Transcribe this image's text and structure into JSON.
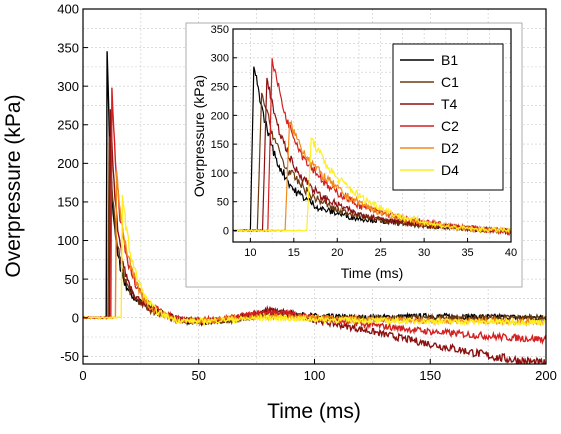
{
  "chart_data": [
    {
      "type": "line",
      "title": "",
      "xlabel": "Time (ms)",
      "ylabel": "Overpressure (kPa)",
      "xlim": [
        0,
        200
      ],
      "ylim": [
        -60,
        400
      ],
      "xticks": [
        0,
        50,
        100,
        150,
        200
      ],
      "yticks": [
        -50,
        0,
        50,
        100,
        150,
        200,
        250,
        300,
        350,
        400
      ],
      "grid": true,
      "series": [
        {
          "name": "B1",
          "color": "#000000",
          "arrival": 10,
          "x": [
            0,
            10,
            10.4,
            11.5,
            13,
            15,
            18,
            22,
            28,
            35,
            45,
            60,
            70,
            80,
            90,
            100,
            120,
            150,
            200
          ],
          "y": [
            0,
            0,
            345,
            220,
            140,
            80,
            45,
            25,
            15,
            5,
            -5,
            -5,
            0,
            8,
            5,
            2,
            0,
            2,
            0
          ]
        },
        {
          "name": "C1",
          "color": "#6b3a10",
          "arrival": 10.8,
          "x": [
            0,
            10.8,
            11.3,
            12.5,
            14,
            17,
            20,
            25,
            30,
            40,
            50,
            65,
            80,
            90,
            100,
            120,
            150,
            200
          ],
          "y": [
            0,
            0,
            235,
            170,
            110,
            60,
            35,
            18,
            8,
            -2,
            -5,
            -3,
            5,
            3,
            0,
            -1,
            0,
            0
          ]
        },
        {
          "name": "T4",
          "color": "#8b1010",
          "arrival": 11.4,
          "x": [
            0,
            11.4,
            11.9,
            13,
            15,
            18,
            22,
            28,
            40,
            55,
            70,
            80,
            90,
            100,
            120,
            140,
            160,
            180,
            200
          ],
          "y": [
            0,
            0,
            270,
            190,
            110,
            60,
            30,
            12,
            -3,
            -5,
            2,
            10,
            5,
            -3,
            -15,
            -28,
            -40,
            -52,
            -60
          ]
        },
        {
          "name": "C2",
          "color": "#d42020",
          "arrival": 12.0,
          "x": [
            0,
            12,
            12.5,
            14,
            16,
            19,
            23,
            28,
            35,
            45,
            60,
            80,
            90,
            100,
            120,
            150,
            180,
            200
          ],
          "y": [
            0,
            0,
            298,
            200,
            130,
            75,
            40,
            20,
            5,
            -4,
            -2,
            8,
            5,
            0,
            -8,
            -18,
            -25,
            -28
          ]
        },
        {
          "name": "D2",
          "color": "#f28a1a",
          "arrival": 14.0,
          "x": [
            0,
            14,
            14.5,
            16,
            18,
            21,
            25,
            30,
            40,
            50,
            60,
            80,
            100,
            130,
            160,
            200
          ],
          "y": [
            0,
            0,
            190,
            140,
            100,
            60,
            30,
            10,
            -3,
            -5,
            -2,
            2,
            0,
            -3,
            -4,
            -5
          ]
        },
        {
          "name": "D4",
          "color": "#ffee20",
          "arrival": 16.5,
          "x": [
            0,
            16.5,
            17,
            18.5,
            20,
            23,
            27,
            32,
            40,
            50,
            60,
            80,
            100,
            130,
            160,
            200
          ],
          "y": [
            0,
            0,
            160,
            120,
            90,
            55,
            25,
            8,
            -3,
            -5,
            -3,
            0,
            -2,
            -4,
            -5,
            -6
          ]
        }
      ]
    },
    {
      "type": "line",
      "title": "",
      "xlabel": "Time (ms)",
      "ylabel": "Overpressure (kPa)",
      "xlim": [
        8,
        40
      ],
      "ylim": [
        -20,
        350
      ],
      "xticks": [
        10,
        15,
        20,
        25,
        30,
        35,
        40
      ],
      "yticks": [
        0,
        50,
        100,
        150,
        200,
        250,
        300,
        350
      ],
      "grid": true,
      "legend": "top-right",
      "series": [
        {
          "name": "B1",
          "color": "#000000",
          "arrival": 10,
          "x": [
            8,
            10,
            10.4,
            11.5,
            13,
            15,
            18,
            22,
            28,
            35,
            40
          ],
          "y": [
            0,
            0,
            285,
            200,
            120,
            70,
            38,
            22,
            12,
            3,
            0
          ]
        },
        {
          "name": "C1",
          "color": "#6b3a10",
          "arrival": 10.8,
          "x": [
            8,
            10.8,
            11.3,
            12.5,
            14,
            17,
            20,
            25,
            30,
            35,
            40
          ],
          "y": [
            0,
            0,
            240,
            170,
            110,
            60,
            35,
            18,
            8,
            3,
            0
          ]
        },
        {
          "name": "T4",
          "color": "#8b1010",
          "arrival": 11.4,
          "x": [
            8,
            11.4,
            11.9,
            13,
            15,
            18,
            22,
            28,
            35,
            40
          ],
          "y": [
            0,
            0,
            265,
            185,
            110,
            60,
            30,
            12,
            3,
            -2
          ]
        },
        {
          "name": "C2",
          "color": "#d42020",
          "arrival": 12.0,
          "x": [
            8,
            12,
            12.5,
            14,
            16,
            19,
            23,
            28,
            33,
            40
          ],
          "y": [
            0,
            0,
            298,
            200,
            130,
            75,
            40,
            20,
            8,
            -3
          ]
        },
        {
          "name": "D2",
          "color": "#f28a1a",
          "arrival": 14.0,
          "x": [
            8,
            14,
            14.5,
            16,
            18,
            21,
            25,
            30,
            35,
            40
          ],
          "y": [
            0,
            0,
            188,
            140,
            100,
            60,
            30,
            12,
            3,
            0
          ]
        },
        {
          "name": "D4",
          "color": "#ffee20",
          "arrival": 16.5,
          "x": [
            8,
            16.5,
            17,
            18.5,
            20,
            23,
            27,
            32,
            36,
            40
          ],
          "y": [
            0,
            0,
            160,
            120,
            90,
            55,
            25,
            8,
            2,
            0
          ]
        }
      ]
    }
  ]
}
